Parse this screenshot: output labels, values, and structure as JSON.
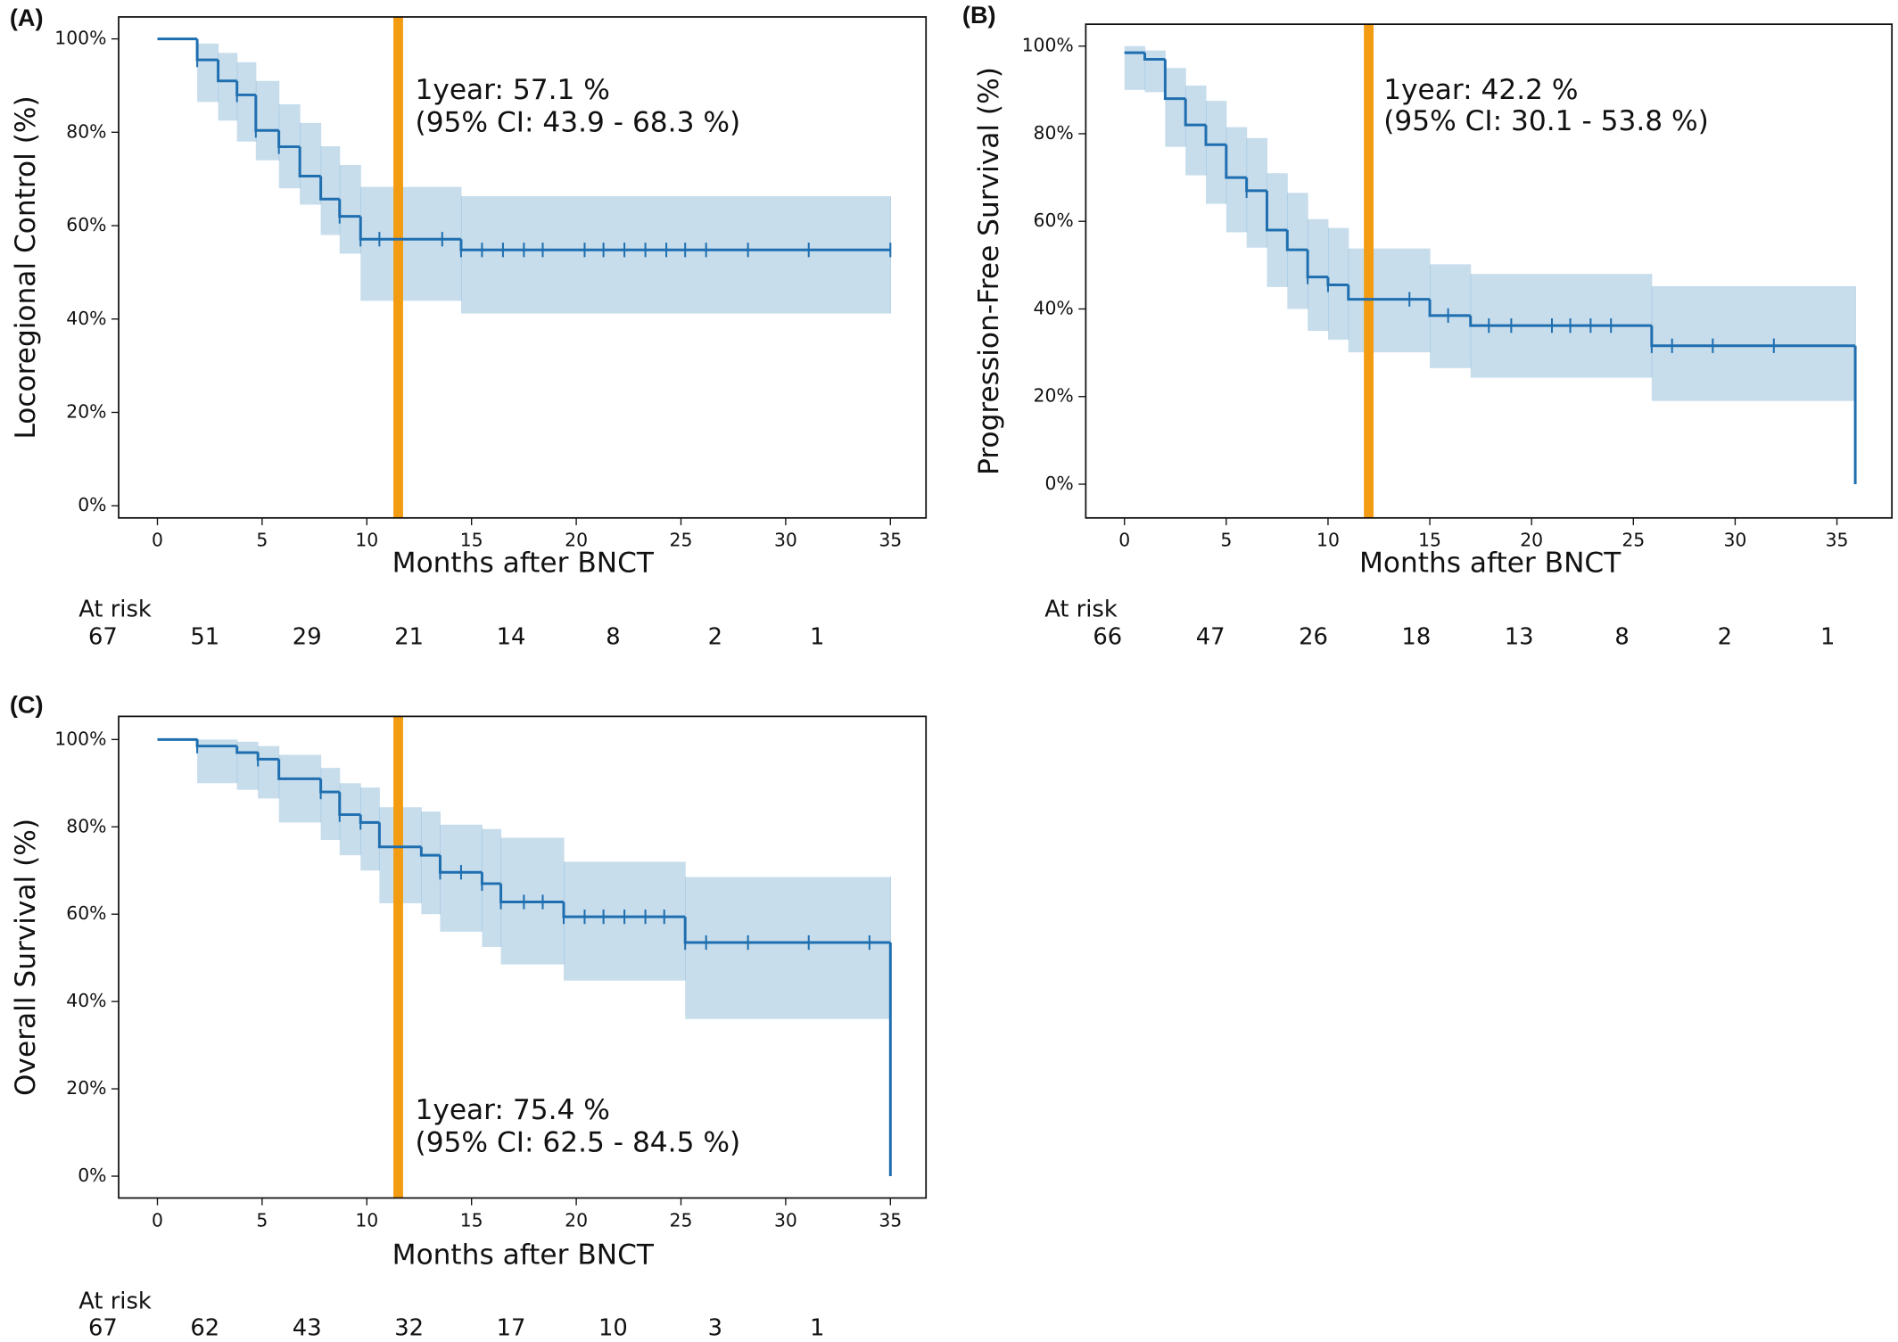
{
  "chart_data": [
    {
      "type": "step",
      "title": "(A)",
      "y_label": "Locoregional Control (%)",
      "x_label": "Months after BNCT",
      "xlim": [
        -1.85,
        36.7
      ],
      "ylim": [
        -2.6,
        104.7
      ],
      "xticks": [
        0,
        5,
        10,
        15,
        20,
        25,
        30,
        35
      ],
      "yticks": [
        {
          "value": 0,
          "label": "0%"
        },
        {
          "value": 20,
          "label": "20%"
        },
        {
          "value": 40,
          "label": "40%"
        },
        {
          "value": 60,
          "label": "60%"
        },
        {
          "value": 80,
          "label": "80%"
        },
        {
          "value": 100,
          "label": "100%"
        }
      ],
      "series": [
        {
          "color": "#1f6fb0",
          "x": [
            0,
            1.9,
            2.9,
            3.8,
            4.7,
            5.8,
            6.8,
            7.8,
            8.7,
            9.7,
            14.5,
            35
          ],
          "values": [
            100,
            95.5,
            91,
            88,
            80.4,
            76.9,
            70.6,
            65.7,
            62,
            57.1,
            54.8,
            54.8
          ]
        }
      ],
      "ci": {
        "color": "#1f77b4",
        "x": [
          1.9,
          2.9,
          3.8,
          4.7,
          5.8,
          6.8,
          7.8,
          8.7,
          9.7,
          14.5,
          35
        ],
        "lower": [
          86.5,
          82.5,
          78,
          74,
          68,
          64.5,
          58,
          54,
          43.9,
          41.2,
          41.2
        ],
        "upper": [
          99,
          97,
          95,
          91,
          86,
          82,
          77,
          73,
          68.3,
          66.3,
          66.3
        ]
      },
      "censored": {
        "x": [
          1.9,
          3.8,
          4.7,
          5.8,
          8.7,
          9.7,
          10.6,
          13.6,
          14.5,
          15.5,
          16.5,
          17.5,
          18.4,
          20.4,
          21.3,
          22.3,
          23.3,
          24.3,
          25.2,
          26.2,
          28.2,
          31.1,
          35
        ],
        "values": [
          95.5,
          88,
          80.4,
          76.9,
          62,
          57.1,
          57.1,
          57.1,
          54.8,
          54.8,
          54.8,
          54.8,
          54.8,
          54.8,
          54.8,
          54.8,
          54.8,
          54.8,
          54.8,
          54.8,
          54.8,
          54.8,
          54.8
        ]
      },
      "vline": {
        "x": 11.5,
        "color": "#f39c12"
      },
      "annotations": [
        "1year: 57.1 %",
        "(95% CI: 43.9 - 68.3 %)"
      ],
      "at_risk_label": "At risk",
      "at_risk": [
        67,
        51,
        29,
        21,
        14,
        8,
        2,
        1
      ]
    },
    {
      "type": "step",
      "title": "(B)",
      "y_label": "Progression-Free Survival (%)",
      "x_label": "Months after BNCT",
      "xlim": [
        -1.9,
        37.7
      ],
      "ylim": [
        -7.7,
        105
      ],
      "xticks": [
        0,
        5,
        10,
        15,
        20,
        25,
        30,
        35
      ],
      "yticks": [
        {
          "value": 0,
          "label": "0%"
        },
        {
          "value": 20,
          "label": "20%"
        },
        {
          "value": 40,
          "label": "40%"
        },
        {
          "value": 60,
          "label": "60%"
        },
        {
          "value": 80,
          "label": "80%"
        },
        {
          "value": 100,
          "label": "100%"
        }
      ],
      "series": [
        {
          "color": "#1f6fb0",
          "x": [
            0,
            1,
            2,
            3,
            4,
            5,
            6,
            7,
            8,
            9,
            10,
            11,
            15,
            17,
            25.9,
            35.9
          ],
          "values": [
            98.5,
            97,
            88,
            82,
            77.5,
            70,
            67,
            58,
            53.5,
            47.3,
            45.5,
            42.2,
            38.5,
            36.2,
            31.6,
            0
          ]
        }
      ],
      "ci": {
        "color": "#1f77b4",
        "x": [
          0,
          1,
          2,
          3,
          4,
          5,
          6,
          7,
          8,
          9,
          10,
          11,
          15,
          17,
          25.9,
          35.9
        ],
        "lower": [
          90,
          89.5,
          77,
          70.5,
          64,
          57.5,
          54,
          45,
          40,
          35,
          33,
          30.1,
          26.5,
          24.3,
          19,
          19
        ],
        "upper": [
          100,
          99,
          95,
          91,
          87.5,
          81.5,
          79,
          71,
          66.5,
          60.5,
          58.5,
          53.8,
          50.2,
          48,
          45.2,
          45.2
        ]
      },
      "censored": {
        "x": [
          6,
          9,
          10,
          14,
          15.9,
          17.9,
          19,
          21,
          21.9,
          22.9,
          23.9,
          25.9,
          26.9,
          28.9,
          31.9
        ],
        "values": [
          67,
          47.3,
          45.5,
          42.2,
          38.5,
          36.2,
          36.2,
          36.2,
          36.2,
          36.2,
          36.2,
          31.6,
          31.6,
          31.6,
          31.6
        ]
      },
      "vline": {
        "x": 12,
        "color": "#f39c12"
      },
      "annotations": [
        "1year: 42.2 %",
        "(95% CI: 30.1 - 53.8 %)"
      ],
      "at_risk_label": "At risk",
      "at_risk": [
        66,
        47,
        26,
        18,
        13,
        8,
        2,
        1
      ]
    },
    {
      "type": "step",
      "title": "(C)",
      "y_label": "Overall Survival (%)",
      "x_label": "Months after BNCT",
      "xlim": [
        -1.85,
        36.7
      ],
      "ylim": [
        -5,
        105.3
      ],
      "xticks": [
        0,
        5,
        10,
        15,
        20,
        25,
        30,
        35
      ],
      "yticks": [
        {
          "value": 0,
          "label": "0%"
        },
        {
          "value": 20,
          "label": "20%"
        },
        {
          "value": 40,
          "label": "40%"
        },
        {
          "value": 60,
          "label": "60%"
        },
        {
          "value": 80,
          "label": "80%"
        },
        {
          "value": 100,
          "label": "100%"
        }
      ],
      "series": [
        {
          "color": "#1f6fb0",
          "x": [
            0,
            1.9,
            3.8,
            4.8,
            5.8,
            7.8,
            8.7,
            9.7,
            10.6,
            12.6,
            13.5,
            15.5,
            16.4,
            19.4,
            25.2,
            35
          ],
          "values": [
            100,
            98.5,
            97,
            95.5,
            91,
            88,
            82.8,
            81,
            75.4,
            73.5,
            69.6,
            67,
            62.8,
            59.4,
            53.5,
            0
          ]
        }
      ],
      "ci": {
        "color": "#1f77b4",
        "x": [
          1.9,
          3.8,
          4.8,
          5.8,
          7.8,
          8.7,
          9.7,
          10.6,
          12.6,
          13.5,
          15.5,
          16.4,
          19.4,
          25.2,
          35
        ],
        "lower": [
          90,
          88.5,
          86.5,
          81,
          77,
          73.5,
          70,
          62.5,
          60,
          56,
          52.5,
          48.5,
          44.8,
          36,
          36
        ],
        "upper": [
          100,
          99.5,
          98.5,
          96.5,
          93.5,
          90,
          89,
          84.5,
          83.5,
          80.5,
          79.5,
          77.5,
          72,
          68.5,
          68.5
        ]
      },
      "censored": {
        "x": [
          1.9,
          4.8,
          7.8,
          8.7,
          9.7,
          13.5,
          14.5,
          15.5,
          16.4,
          17.5,
          18.4,
          19.4,
          20.4,
          21.3,
          22.3,
          23.3,
          24.2,
          25.2,
          26.2,
          28.2,
          31.1,
          34
        ],
        "values": [
          98.5,
          95.5,
          88,
          82.8,
          81,
          69.6,
          69.6,
          67,
          62.8,
          62.8,
          62.8,
          59.4,
          59.4,
          59.4,
          59.4,
          59.4,
          59.4,
          53.5,
          53.5,
          53.5,
          53.5,
          53.5
        ]
      },
      "vline": {
        "x": 11.5,
        "color": "#f39c12"
      },
      "annotations": [
        "1year: 75.4 %",
        "(95% CI: 62.5 - 84.5 %)"
      ],
      "at_risk_label": "At risk",
      "at_risk": [
        67,
        62,
        43,
        32,
        17,
        10,
        3,
        1
      ]
    }
  ]
}
